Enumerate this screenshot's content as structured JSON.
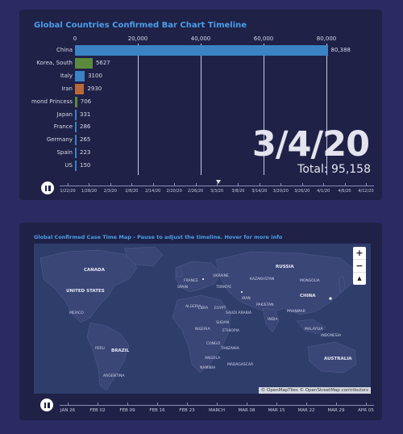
{
  "bar_panel": {
    "title": "Global Countries Confirmed Bar Chart Timeline",
    "date": "3/4/20",
    "total": "Total: 95,158",
    "axis_ticks": [
      "0",
      "20,000",
      "40,000",
      "60,000",
      "80,000"
    ],
    "timeline_labels": [
      "1/22/20",
      "1/28/20",
      "2/3/20",
      "2/8/20",
      "2/14/20",
      "2/20/20",
      "2/26/20",
      "3/3/20",
      "3/8/20",
      "3/14/20",
      "3/20/20",
      "3/26/20",
      "4/1/20",
      "4/6/20",
      "4/12/20"
    ]
  },
  "chart_data": {
    "type": "bar",
    "orientation": "horizontal",
    "title": "Global Countries Confirmed Bar Chart Timeline",
    "categories": [
      "China",
      "Korea, South",
      "Italy",
      "Iran",
      "Diamond Princess",
      "Japan",
      "France",
      "Germany",
      "Spain",
      "US"
    ],
    "display_labels": [
      "China",
      "Korea, South",
      "Italy",
      "Iran",
      "mond Princess",
      "Japan",
      "France",
      "Germany",
      "Spain",
      "US"
    ],
    "values": [
      80388,
      5627,
      3100,
      2930,
      706,
      331,
      286,
      265,
      223,
      150
    ],
    "value_labels": [
      "80,388",
      "5627",
      "3100",
      "2930",
      "706",
      "331",
      "286",
      "265",
      "223",
      "150"
    ],
    "colors": [
      "#3b83c4",
      "#5c8a3c",
      "#3b83c4",
      "#b8683a",
      "#5c8a3c",
      "#3b83c4",
      "#3b83c4",
      "#3b83c4",
      "#3b83c4",
      "#3b83c4"
    ],
    "xlim": [
      0,
      90000
    ],
    "grid": true
  },
  "map_panel": {
    "title": "Global Confirmed Case Time Map - Pause to adjust the timeline. Hover for more info",
    "zoom_in": "+",
    "zoom_out": "−",
    "compass": "▲",
    "attribution": "© OpenMapTiles © OpenStreetMap contributors",
    "timeline_labels": [
      "JAN 26",
      "FEB 02",
      "FEB 09",
      "FEB 16",
      "FEB 23",
      "MARCH",
      "MAR 08",
      "MAR 15",
      "MAR 22",
      "MAR 29",
      "APR 05"
    ]
  },
  "colors": {
    "background": "#2a2b62",
    "panel": "#1f2147",
    "title": "#4a9ee8",
    "map_water": "#2f3d6b",
    "map_land": "#3a4676"
  }
}
